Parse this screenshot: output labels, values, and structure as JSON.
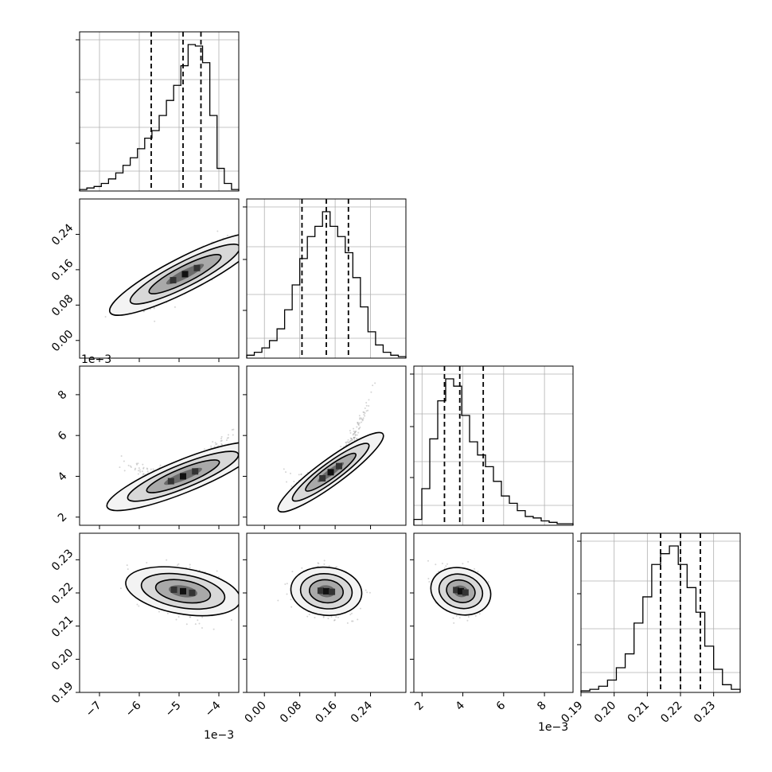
{
  "chart_data": {
    "type": "corner",
    "parameters": [
      {
        "index": 0,
        "range": [
          -7.5,
          -3.5
        ],
        "ticks": [
          -7,
          -6,
          -5,
          -4
        ],
        "tick_labels": [
          "−7",
          "−6",
          "−5",
          "−4"
        ],
        "offset_text": "1e−3",
        "quantiles": [
          -5.7,
          -4.9,
          -4.45
        ],
        "hist": [
          1,
          2,
          3,
          5,
          8,
          12,
          17,
          22,
          28,
          35,
          40,
          50,
          60,
          70,
          83,
          97,
          96,
          85,
          50,
          15,
          5,
          1
        ]
      },
      {
        "index": 1,
        "range": [
          -0.04,
          0.32
        ],
        "ticks": [
          0.0,
          0.08,
          0.16,
          0.24
        ],
        "tick_labels": [
          "0.00",
          "0.08",
          "0.16",
          "0.24"
        ],
        "offset_text": "",
        "quantiles": [
          0.085,
          0.14,
          0.19
        ],
        "hist": [
          2,
          4,
          7,
          12,
          20,
          33,
          50,
          68,
          83,
          90,
          100,
          90,
          83,
          72,
          55,
          35,
          18,
          9,
          4,
          2,
          1
        ]
      },
      {
        "index": 2,
        "range": [
          1.6,
          9.4
        ],
        "ticks": [
          2,
          4,
          6,
          8
        ],
        "tick_labels": [
          "2",
          "4",
          "6",
          "8"
        ],
        "offset_text": "1e−3",
        "quantiles": [
          3.1,
          3.85,
          5.0
        ],
        "hist": [
          4,
          25,
          59,
          85,
          100,
          95,
          75,
          57,
          48,
          40,
          30,
          20,
          15,
          10,
          6,
          5,
          3,
          2,
          1,
          1
        ]
      },
      {
        "index": 3,
        "range": [
          0.19,
          0.238
        ],
        "ticks": [
          0.19,
          0.2,
          0.21,
          0.22,
          0.23
        ],
        "tick_labels": [
          "0.19",
          "0.20",
          "0.21",
          "0.22",
          "0.23"
        ],
        "offset_text": "",
        "quantiles": [
          0.214,
          0.22,
          0.226
        ],
        "hist": [
          1,
          2,
          4,
          8,
          16,
          25,
          45,
          62,
          83,
          90,
          95,
          83,
          68,
          52,
          30,
          15,
          5,
          2
        ]
      }
    ],
    "corr": [
      [
        1,
        0.85,
        0.8,
        -0.35
      ],
      [
        0.85,
        1,
        0.92,
        -0.15
      ],
      [
        0.8,
        0.92,
        1,
        -0.3
      ],
      [
        -0.35,
        -0.15,
        -0.3,
        1
      ]
    ]
  }
}
